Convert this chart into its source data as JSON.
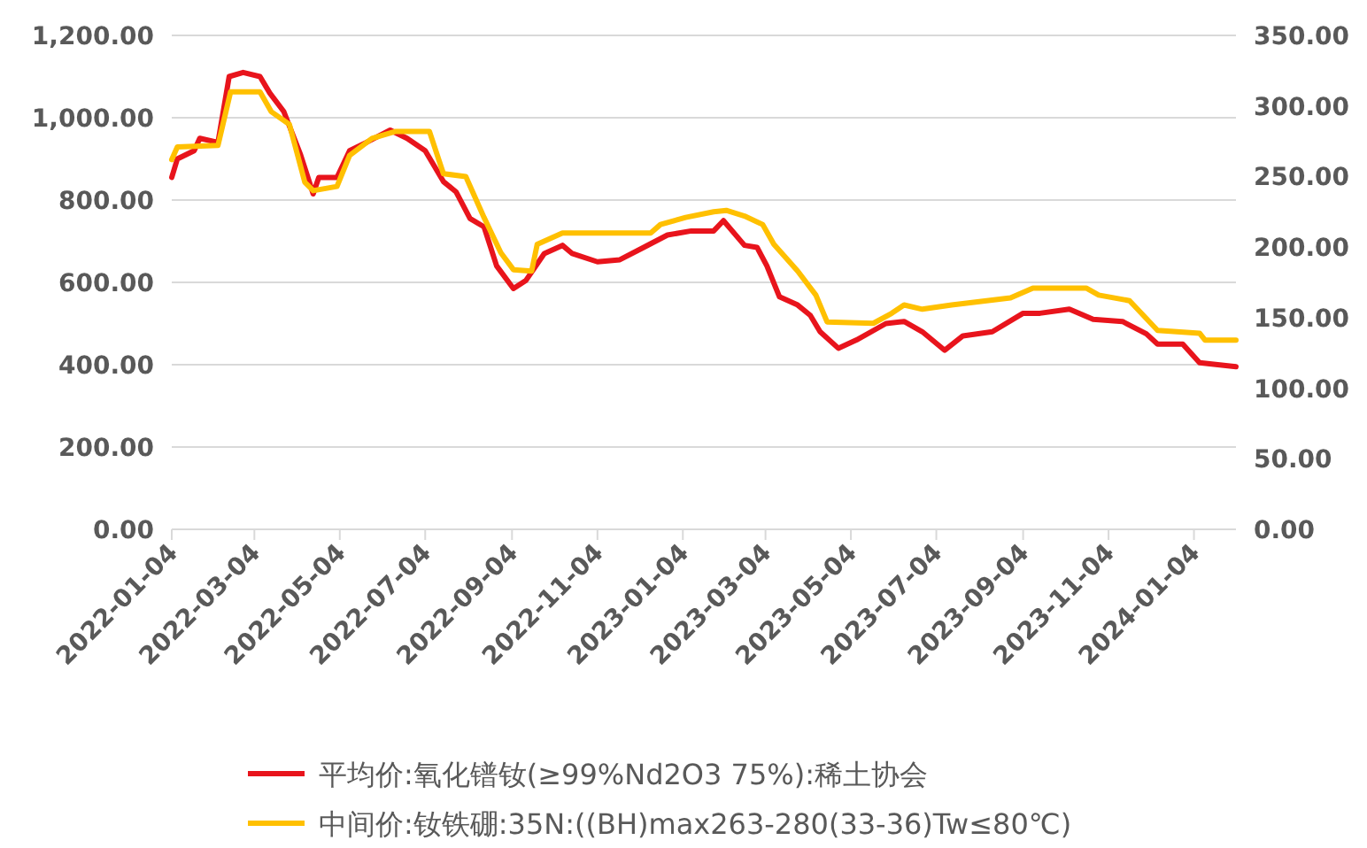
{
  "chart_data": {
    "type": "line",
    "xlim": [
      "2022-01-04",
      "2024-02-03"
    ],
    "xticks": [
      "2022-01-04",
      "2022-03-04",
      "2022-05-04",
      "2022-07-04",
      "2022-09-04",
      "2022-11-04",
      "2023-01-04",
      "2023-03-04",
      "2023-05-04",
      "2023-07-04",
      "2023-09-04",
      "2023-11-04",
      "2024-01-04"
    ],
    "ylim": [
      0,
      1200
    ],
    "yticks": [
      {
        "value": 0,
        "label": "0.00"
      },
      {
        "value": 200,
        "label": "200.00"
      },
      {
        "value": 400,
        "label": "400.00"
      },
      {
        "value": 600,
        "label": "600.00"
      },
      {
        "value": 800,
        "label": "800.00"
      },
      {
        "value": 1000,
        "label": "1,000.00"
      },
      {
        "value": 1200,
        "label": "1,200.00"
      }
    ],
    "y2lim": [
      0,
      350
    ],
    "y2ticks": [
      {
        "value": 0,
        "label": "0.00"
      },
      {
        "value": 50,
        "label": "50.00"
      },
      {
        "value": 100,
        "label": "100.00"
      },
      {
        "value": 150,
        "label": "150.00"
      },
      {
        "value": 200,
        "label": "200.00"
      },
      {
        "value": 250,
        "label": "250.00"
      },
      {
        "value": 300,
        "label": "300.00"
      },
      {
        "value": 350,
        "label": "350.00"
      }
    ],
    "grid": "y",
    "legend": "bottom",
    "series": [
      {
        "name": "平均价:氧化镨钕(≥99%Nd2O3 75%):稀土协会",
        "color": "#e8141c",
        "x": [
          "2022-01-04",
          "2022-01-08",
          "2022-01-20",
          "2022-01-24",
          "2022-02-06",
          "2022-02-14",
          "2022-02-24",
          "2022-03-08",
          "2022-03-15",
          "2022-03-25",
          "2022-04-06",
          "2022-04-15",
          "2022-04-19",
          "2022-05-02",
          "2022-05-11",
          "2022-05-23",
          "2022-06-09",
          "2022-06-21",
          "2022-07-04",
          "2022-07-17",
          "2022-07-26",
          "2022-08-05",
          "2022-08-15",
          "2022-08-24",
          "2022-09-05",
          "2022-09-14",
          "2022-09-27",
          "2022-10-10",
          "2022-10-17",
          "2022-11-04",
          "2022-11-20",
          "2022-12-07",
          "2022-12-24",
          "2023-01-10",
          "2023-01-26",
          "2023-02-02",
          "2023-02-17",
          "2023-02-26",
          "2023-03-05",
          "2023-03-14",
          "2023-03-27",
          "2023-04-05",
          "2023-04-12",
          "2023-04-25",
          "2023-05-08",
          "2023-05-29",
          "2023-06-11",
          "2023-06-24",
          "2023-07-10",
          "2023-07-23",
          "2023-08-13",
          "2023-09-04",
          "2023-09-16",
          "2023-10-07",
          "2023-10-24",
          "2023-11-14",
          "2023-12-01",
          "2023-12-09",
          "2023-12-27",
          "2024-01-08",
          "2024-02-03"
        ],
        "values": [
          855,
          900,
          920,
          950,
          940,
          1100,
          1110,
          1100,
          1060,
          1015,
          910,
          815,
          855,
          855,
          920,
          940,
          970,
          950,
          920,
          845,
          820,
          755,
          735,
          640,
          585,
          605,
          670,
          690,
          670,
          650,
          655,
          685,
          715,
          725,
          725,
          750,
          690,
          685,
          640,
          565,
          545,
          520,
          480,
          440,
          460,
          500,
          505,
          480,
          435,
          470,
          480,
          525,
          525,
          535,
          510,
          505,
          475,
          450,
          450,
          405,
          395
        ]
      },
      {
        "name": "中间价:钕铁硼:35N:((BH)max263-280(33-36)Tw≤80℃)",
        "color": "#ffc000",
        "axis": "y2",
        "x": [
          "2022-01-04",
          "2022-01-08",
          "2022-02-06",
          "2022-02-15",
          "2022-03-08",
          "2022-03-16",
          "2022-03-29",
          "2022-04-09",
          "2022-04-15",
          "2022-05-02",
          "2022-05-11",
          "2022-05-27",
          "2022-06-13",
          "2022-07-07",
          "2022-07-17",
          "2022-08-02",
          "2022-08-15",
          "2022-08-27",
          "2022-09-05",
          "2022-09-18",
          "2022-09-22",
          "2022-10-10",
          "2022-12-12",
          "2022-12-19",
          "2023-01-06",
          "2023-01-26",
          "2023-02-04",
          "2023-02-17",
          "2023-03-02",
          "2023-03-10",
          "2023-03-27",
          "2023-04-09",
          "2023-04-17",
          "2023-05-20",
          "2023-06-02",
          "2023-06-11",
          "2023-06-24",
          "2023-07-15",
          "2023-08-26",
          "2023-09-11",
          "2023-10-19",
          "2023-10-28",
          "2023-11-19",
          "2023-12-09",
          "2024-01-08",
          "2024-01-12",
          "2024-02-03"
        ],
        "values": [
          262,
          271,
          272,
          310,
          310,
          296,
          287,
          246,
          240,
          243,
          265,
          277,
          282,
          282,
          252,
          250,
          221,
          196,
          184,
          183,
          202,
          210,
          210,
          216,
          221,
          225,
          226,
          222,
          216,
          202,
          183,
          166,
          147,
          146,
          153,
          159,
          156,
          159,
          164,
          171,
          171,
          166,
          162,
          141,
          139,
          134,
          134
        ]
      }
    ]
  }
}
